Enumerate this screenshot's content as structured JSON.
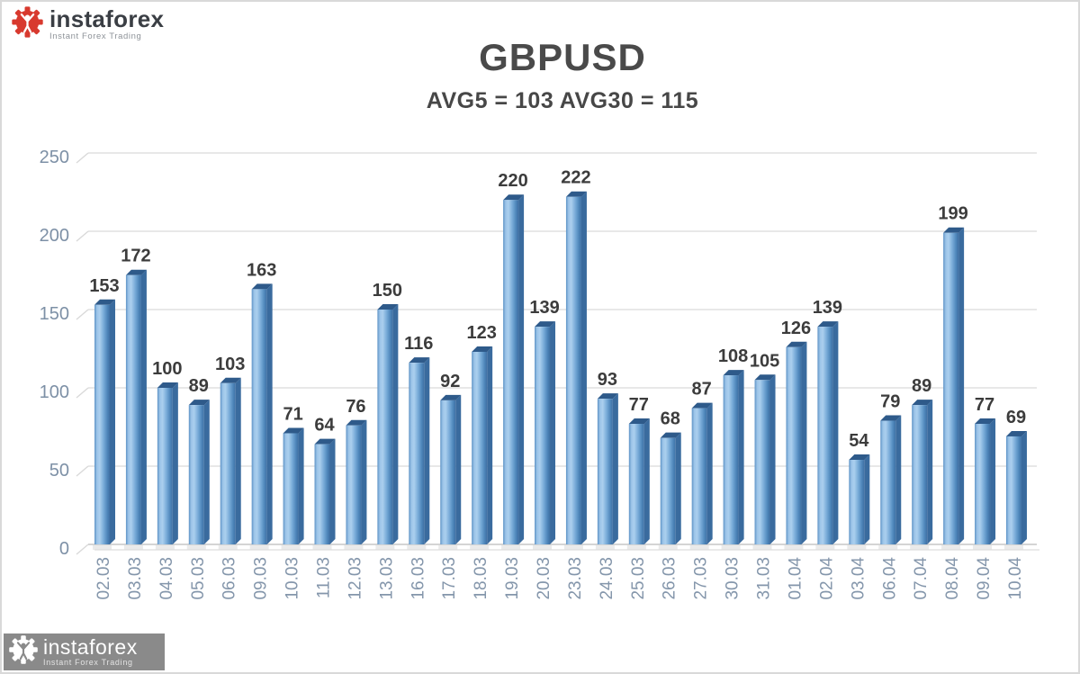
{
  "page": {
    "background": "#ffffff",
    "border_color": "#d9d9d9"
  },
  "header_brand": {
    "icon": "instaforex-gear-person-icon",
    "icon_color": "#d8392e",
    "person_color": "#ffffff",
    "name": "instaforex",
    "tagline": "Instant Forex Trading"
  },
  "footer_brand": {
    "icon": "instaforex-gear-person-icon",
    "box_color": "#8a8a8a",
    "icon_color": "#ffffff",
    "person_color": "#8a8a8a",
    "name": "instaforex",
    "tagline": "Instant Forex Trading"
  },
  "chart_data": {
    "type": "bar",
    "title": "GBPUSD",
    "subtitle": "AVG5 = 103 AVG30 = 115",
    "avg5": 103,
    "avg30": 115,
    "categories": [
      "02.03",
      "03.03",
      "04.03",
      "05.03",
      "06.03",
      "09.03",
      "10.03",
      "11.03",
      "12.03",
      "13.03",
      "16.03",
      "17.03",
      "18.03",
      "19.03",
      "20.03",
      "23.03",
      "24.03",
      "25.03",
      "26.03",
      "27.03",
      "30.03",
      "31.03",
      "01.04",
      "02.04",
      "03.04",
      "06.04",
      "07.04",
      "08.04",
      "09.04",
      "10.04"
    ],
    "values": [
      153,
      172,
      100,
      89,
      103,
      163,
      71,
      64,
      76,
      150,
      116,
      92,
      123,
      220,
      139,
      222,
      93,
      77,
      68,
      87,
      108,
      105,
      126,
      139,
      54,
      79,
      89,
      199,
      77,
      69
    ],
    "ylim": [
      0,
      250
    ],
    "yticks": [
      0,
      50,
      100,
      150,
      200,
      250
    ],
    "grid": true,
    "legend": "none",
    "style_3d": true,
    "colors": {
      "bar_gradient": [
        "#5E93C6",
        "#9CC4E8",
        "#ABCFEE",
        "#78ABD8",
        "#4E86BA",
        "#3E6FA3"
      ],
      "bar_side": "#3A6B9E",
      "bar_top": "#2E5A8A",
      "bar_base_shadow": "#d8d8d8",
      "gridline": "#D9D9D9",
      "baseline": "#C6C6C6",
      "floor_line": "#E4E4E4",
      "ytick_label": "#7D90A6",
      "xtick_label": "#8496AB",
      "value_label": "#3C3C3C",
      "title": "#4a4a4a"
    }
  }
}
